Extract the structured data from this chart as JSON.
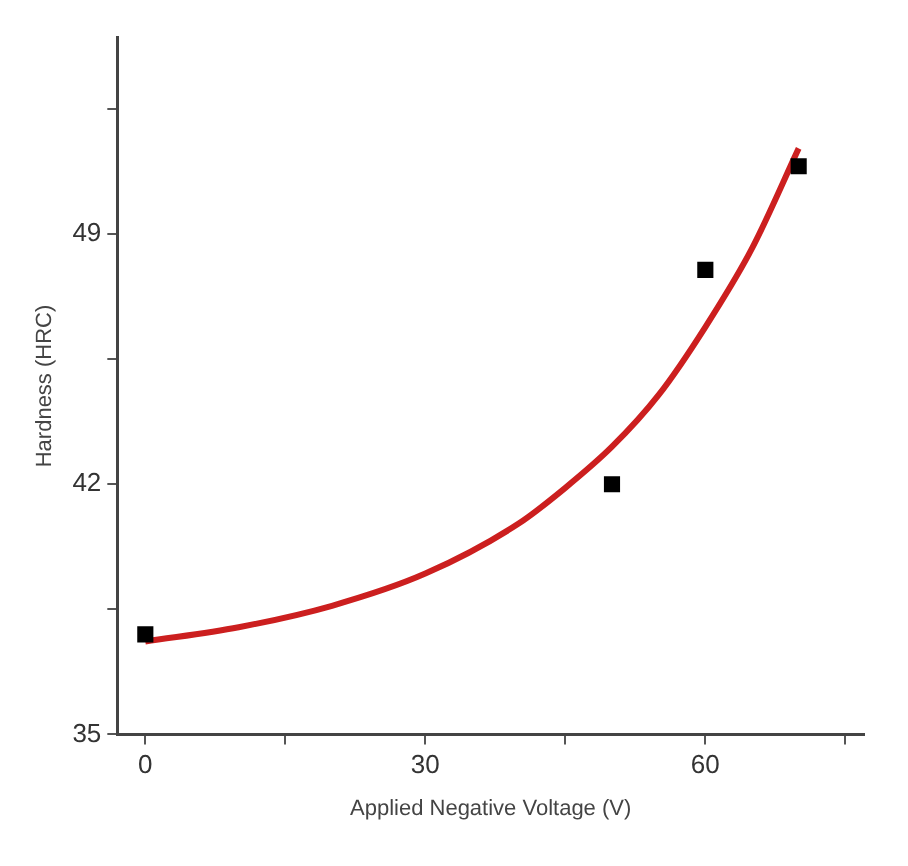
{
  "chart_data": {
    "type": "scatter",
    "xlabel": "Applied Negative Voltage (V)",
    "ylabel": "Hardness (HRC)",
    "xlim": [
      -3,
      77
    ],
    "ylim": [
      35,
      54.5
    ],
    "xticks": [
      0,
      {
        "value": 15,
        "label": null
      },
      30,
      {
        "value": 45,
        "label": null
      },
      60,
      {
        "value": 75,
        "label": null
      }
    ],
    "yticks": [
      35,
      {
        "value": 38.5,
        "label": null
      },
      42,
      {
        "value": 45.5,
        "label": null
      },
      49,
      {
        "value": 52.5,
        "label": null
      }
    ],
    "grid": false,
    "legend": false,
    "series": [
      {
        "type": "scatter",
        "marker": "square",
        "color": "#000000",
        "x": [
          0,
          50,
          60,
          70
        ],
        "values": [
          37.8,
          42,
          48,
          50.9
        ]
      },
      {
        "type": "line",
        "marker": "none",
        "line_style": "solid",
        "color": "#cc1f1f",
        "x": [
          0,
          10,
          20,
          30,
          40,
          45,
          50,
          55,
          60,
          65,
          70
        ],
        "values": [
          37.6,
          38.0,
          38.6,
          39.5,
          40.9,
          41.9,
          43.05,
          44.5,
          46.4,
          48.6,
          51.4
        ]
      }
    ]
  }
}
